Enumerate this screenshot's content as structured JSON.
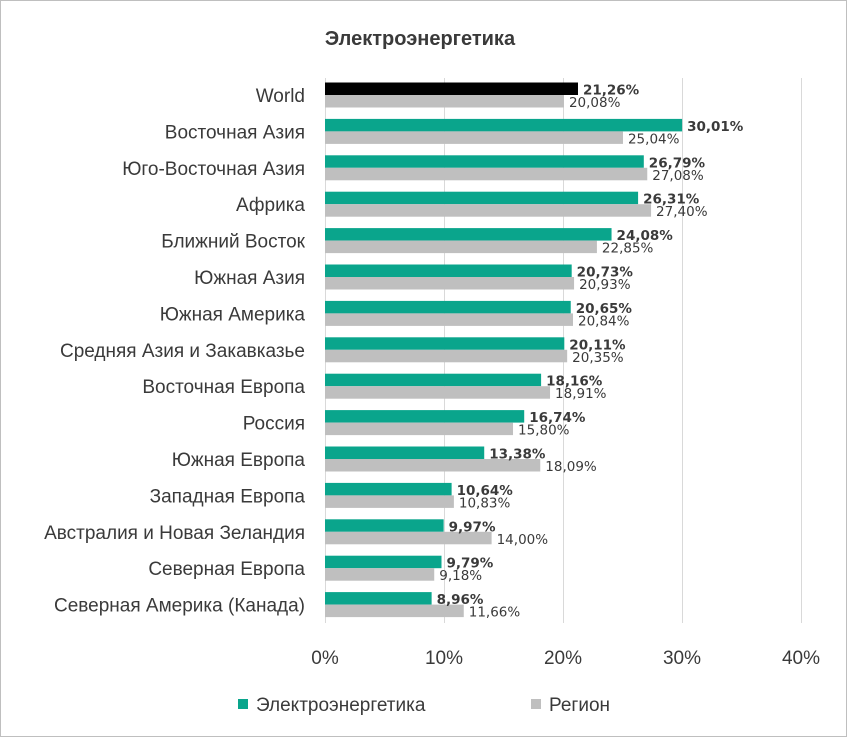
{
  "chart_data": {
    "type": "bar",
    "orientation": "horizontal",
    "title": "Электроэнергетика",
    "categories": [
      "World",
      "Восточная Азия",
      "Юго-Восточная Азия",
      "Африка",
      "Ближний Восток",
      "Южная Азия",
      "Южная Америка",
      "Средняя Азия и Закавказье",
      "Восточная Европа",
      "Россия",
      "Южная Европа",
      "Западная Европа",
      "Австралия и Новая Зеландия",
      "Северная Европа",
      "Северная Америка (Канада)"
    ],
    "series": [
      {
        "name": "Электроэнергетика",
        "color": "#0aa58c",
        "highlight": {
          "category": "World",
          "color": "#000000"
        },
        "values": [
          21.26,
          30.01,
          26.79,
          26.31,
          24.08,
          20.73,
          20.65,
          20.11,
          18.16,
          16.74,
          13.38,
          10.64,
          9.97,
          9.79,
          8.96
        ],
        "labels": [
          "21,26%",
          "30,01%",
          "26,79%",
          "26,31%",
          "24,08%",
          "20,73%",
          "20,65%",
          "20,11%",
          "18,16%",
          "16,74%",
          "13,38%",
          "10,64%",
          "9,97%",
          "9,79%",
          "8,96%"
        ]
      },
      {
        "name": "Регион",
        "color": "#bfbfbf",
        "values": [
          20.08,
          25.04,
          27.08,
          27.4,
          22.85,
          20.93,
          20.84,
          20.35,
          18.91,
          15.8,
          18.09,
          10.83,
          14.0,
          9.18,
          11.66
        ],
        "labels": [
          "20,08%",
          "25,04%",
          "27,08%",
          "27,40%",
          "22,85%",
          "20,93%",
          "20,84%",
          "20,35%",
          "18,91%",
          "15,80%",
          "18,09%",
          "10,83%",
          "14,00%",
          "9,18%",
          "11,66%"
        ]
      }
    ],
    "xlim": [
      0,
      40
    ],
    "xticks": [
      0,
      10,
      20,
      30,
      40
    ],
    "xtick_labels": [
      "0%",
      "10%",
      "20%",
      "30%",
      "40%"
    ],
    "grid": "vertical",
    "legend": "bottom"
  }
}
